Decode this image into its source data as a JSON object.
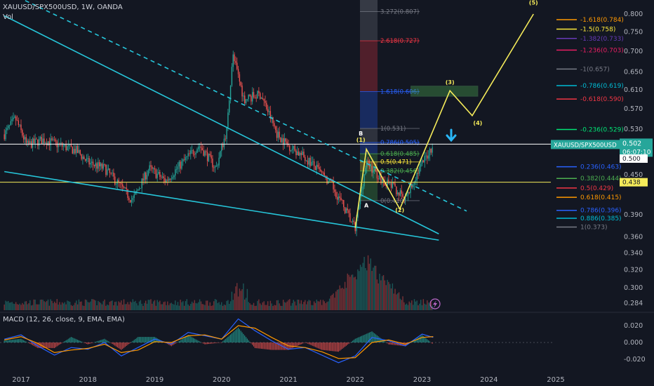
{
  "header": {
    "symbol_line": "XAUUSD/SPX500USD, 1W, OANDA",
    "volume_label": "Vol",
    "macd_label": "MACD (12, 26, close, 9, EMA, EMA)"
  },
  "colors": {
    "background": "#131722",
    "up": "#26a69a",
    "down": "#ef5350",
    "trendline": "#26c6da",
    "wave": "#f5eb5a",
    "macd": "#2962ff",
    "signal": "#ff9800",
    "price_tag": "#26a69a"
  },
  "chart_data": [
    {
      "type": "candlestick",
      "symbol": "XAUUSD/SPX500USD",
      "interval": "1W",
      "source": "OANDA",
      "x_range": [
        "2016-10",
        "2025-06"
      ],
      "y_range": [
        0.27,
        0.82
      ],
      "y_scale": "log",
      "y_ticks": [
        "0.800",
        "0.750",
        "0.700",
        "0.650",
        "0.610",
        "0.570",
        "0.530",
        "0.500",
        "0.450",
        "0.390",
        "0.360",
        "0.340",
        "0.320",
        "0.300",
        "0.284"
      ],
      "x_ticks": [
        "2017",
        "2018",
        "2019",
        "2020",
        "2021",
        "2022",
        "2023",
        "2024",
        "2025"
      ],
      "price_path": [
        [
          "2016-10",
          0.52
        ],
        [
          "2016-12",
          0.55
        ],
        [
          "2017-02",
          0.5
        ],
        [
          "2017-05",
          0.51
        ],
        [
          "2017-08",
          0.5
        ],
        [
          "2017-11",
          0.49
        ],
        [
          "2018-01",
          0.47
        ],
        [
          "2018-04",
          0.46
        ],
        [
          "2018-07",
          0.43
        ],
        [
          "2018-09",
          0.41
        ],
        [
          "2018-12",
          0.46
        ],
        [
          "2019-03",
          0.44
        ],
        [
          "2019-06",
          0.47
        ],
        [
          "2019-09",
          0.5
        ],
        [
          "2019-12",
          0.46
        ],
        [
          "2020-02",
          0.53
        ],
        [
          "2020-03",
          0.69
        ],
        [
          "2020-05",
          0.59
        ],
        [
          "2020-08",
          0.6
        ],
        [
          "2020-11",
          0.52
        ],
        [
          "2021-01",
          0.5
        ],
        [
          "2021-05",
          0.47
        ],
        [
          "2021-09",
          0.43
        ],
        [
          "2021-12",
          0.385
        ],
        [
          "2022-01",
          0.37
        ],
        [
          "2022-03",
          0.47
        ],
        [
          "2022-06",
          0.44
        ],
        [
          "2022-08",
          0.43
        ],
        [
          "2022-10",
          0.41
        ],
        [
          "2022-12",
          0.45
        ],
        [
          "2023-03",
          0.502
        ]
      ],
      "price_tag": {
        "label": "XAUUSD/SPX500USD",
        "value": "0.502",
        "countdown": "06:07:10"
      },
      "axis_marks": [
        {
          "label": "0.500"
        },
        {
          "label": "0.438"
        }
      ],
      "fib_left": [
        {
          "label": "3.272(0.807)",
          "value": 0.807,
          "color": "#787b86"
        },
        {
          "label": "2.618(0.727)",
          "value": 0.727,
          "color": "#f23645"
        },
        {
          "label": "1.618(0.606)",
          "value": 0.606,
          "color": "#2962ff"
        },
        {
          "label": "1(0.531)",
          "value": 0.531,
          "color": "#787b86"
        },
        {
          "label": "0.786(0.505)",
          "value": 0.505,
          "color": "#2962ff"
        },
        {
          "label": "0.618(0.485)",
          "value": 0.485,
          "color": "#4caf50"
        },
        {
          "label": "0.5(0.471)",
          "value": 0.471,
          "color": "#ffeb3b"
        },
        {
          "label": "0.382(0.456)",
          "value": 0.456,
          "color": "#4caf50"
        },
        {
          "label": "0(0.410)",
          "value": 0.41,
          "color": "#787b86"
        }
      ],
      "fib_right": [
        {
          "label": "-1.618(0.784)",
          "value": 0.784,
          "color": "#ff9800"
        },
        {
          "label": "-1.5(0.758)",
          "value": 0.758,
          "color": "#ffeb3b"
        },
        {
          "label": "-1.382(0.733)",
          "value": 0.733,
          "color": "#673ab7"
        },
        {
          "label": "-1.236(0.703)",
          "value": 0.703,
          "color": "#e91e63"
        },
        {
          "label": "-1(0.657)",
          "value": 0.657,
          "color": "#787b86"
        },
        {
          "label": "-0.786(0.619)",
          "value": 0.619,
          "color": "#00bcd4"
        },
        {
          "label": "-0.618(0.590)",
          "value": 0.59,
          "color": "#f23645"
        },
        {
          "label": "-0.236(0.529)",
          "value": 0.529,
          "color": "#00e676"
        },
        {
          "label": "0.236(0.463)",
          "value": 0.463,
          "color": "#2962ff"
        },
        {
          "label": "0.382(0.444)",
          "value": 0.444,
          "color": "#4caf50"
        },
        {
          "label": "0.5(0.429)",
          "value": 0.429,
          "color": "#f23645"
        },
        {
          "label": "0.618(0.415)",
          "value": 0.415,
          "color": "#ff9800"
        },
        {
          "label": "0.786(0.396)",
          "value": 0.396,
          "color": "#2962ff"
        },
        {
          "label": "0.886(0.385)",
          "value": 0.385,
          "color": "#00bcd4"
        },
        {
          "label": "1(0.373)",
          "value": 0.373,
          "color": "#787b86"
        }
      ],
      "wave_path": [
        [
          "2022-01",
          0.372
        ],
        [
          "2022-03",
          0.493
        ],
        [
          "2022-09",
          0.398
        ],
        [
          "2023-06",
          0.608
        ],
        [
          "2023-10",
          0.556
        ],
        [
          "2024-09",
          0.8
        ]
      ],
      "wave_labels": [
        {
          "label": "(1)",
          "at": [
            "2022-02",
            0.506
          ]
        },
        {
          "label": "(2)",
          "at": [
            "2022-09",
            0.394
          ]
        },
        {
          "label": "(3)",
          "at": [
            "2023-06",
            0.622
          ]
        },
        {
          "label": "(4)",
          "at": [
            "2023-11",
            0.538
          ]
        },
        {
          "label": "(5)",
          "at": [
            "2024-09",
            0.828
          ]
        },
        {
          "label": "A",
          "at": [
            "2022-03",
            0.4
          ]
        },
        {
          "label": "B",
          "at": [
            "2022-02",
            0.518
          ]
        }
      ],
      "target_zone": {
        "x": [
          "2022-11",
          "2023-11"
        ],
        "y": [
          0.596,
          0.618
        ]
      },
      "horizontal_lines": [
        {
          "value": 0.502,
          "color": "#ffffff"
        },
        {
          "value": 0.438,
          "color": "#f5eb5a"
        }
      ],
      "trendlines": [
        {
          "from": [
            "2016-10",
            0.795
          ],
          "to": [
            "2023-04",
            0.364
          ],
          "style": "solid"
        },
        {
          "from": [
            "2016-10",
            0.455
          ],
          "to": [
            "2023-04",
            0.356
          ],
          "style": "solid"
        },
        {
          "from": [
            "2016-10",
            0.87
          ],
          "to": [
            "2023-09",
            0.395
          ],
          "style": "dashed"
        }
      ]
    },
    {
      "type": "bar",
      "name": "Vol",
      "x_range": [
        "2016-10",
        "2025-06"
      ],
      "spike": [
        "2022-03",
        0.36
      ]
    },
    {
      "type": "line",
      "name": "MACD (12, 26, close, 9, EMA, EMA)",
      "y_ticks": [
        "0.020",
        "0.000",
        "-0.020"
      ],
      "y_range": [
        -0.03,
        0.03
      ],
      "series": [
        {
          "name": "MACD",
          "color": "#2962ff",
          "points": [
            [
              "2016-10",
              0.004
            ],
            [
              "2017-01",
              0.009
            ],
            [
              "2017-04",
              -0.004
            ],
            [
              "2017-07",
              -0.015
            ],
            [
              "2017-10",
              -0.006
            ],
            [
              "2018-01",
              -0.008
            ],
            [
              "2018-04",
              0.0
            ],
            [
              "2018-07",
              -0.016
            ],
            [
              "2018-10",
              -0.006
            ],
            [
              "2019-01",
              0.004
            ],
            [
              "2019-04",
              -0.002
            ],
            [
              "2019-07",
              0.012
            ],
            [
              "2019-10",
              0.008
            ],
            [
              "2020-01",
              0.004
            ],
            [
              "2020-04",
              0.028
            ],
            [
              "2020-07",
              0.014
            ],
            [
              "2020-10",
              0.002
            ],
            [
              "2021-01",
              -0.008
            ],
            [
              "2021-04",
              -0.006
            ],
            [
              "2021-07",
              -0.015
            ],
            [
              "2021-10",
              -0.024
            ],
            [
              "2022-01",
              -0.016
            ],
            [
              "2022-04",
              0.006
            ],
            [
              "2022-07",
              0.002
            ],
            [
              "2022-10",
              -0.004
            ],
            [
              "2023-01",
              0.01
            ],
            [
              "2023-03",
              0.006
            ]
          ]
        },
        {
          "name": "Signal",
          "color": "#ff9800",
          "points": [
            [
              "2016-10",
              0.003
            ],
            [
              "2017-01",
              0.007
            ],
            [
              "2017-04",
              -0.001
            ],
            [
              "2017-07",
              -0.012
            ],
            [
              "2017-10",
              -0.009
            ],
            [
              "2018-01",
              -0.007
            ],
            [
              "2018-04",
              -0.002
            ],
            [
              "2018-07",
              -0.012
            ],
            [
              "2018-10",
              -0.009
            ],
            [
              "2019-01",
              0.001
            ],
            [
              "2019-04",
              0.0
            ],
            [
              "2019-07",
              0.008
            ],
            [
              "2019-10",
              0.009
            ],
            [
              "2020-01",
              0.004
            ],
            [
              "2020-04",
              0.02
            ],
            [
              "2020-07",
              0.017
            ],
            [
              "2020-10",
              0.006
            ],
            [
              "2021-01",
              -0.004
            ],
            [
              "2021-04",
              -0.006
            ],
            [
              "2021-07",
              -0.011
            ],
            [
              "2021-10",
              -0.019
            ],
            [
              "2022-01",
              -0.018
            ],
            [
              "2022-04",
              0.0
            ],
            [
              "2022-07",
              0.003
            ],
            [
              "2022-10",
              -0.002
            ],
            [
              "2023-01",
              0.006
            ],
            [
              "2023-03",
              0.007
            ]
          ]
        }
      ]
    }
  ]
}
